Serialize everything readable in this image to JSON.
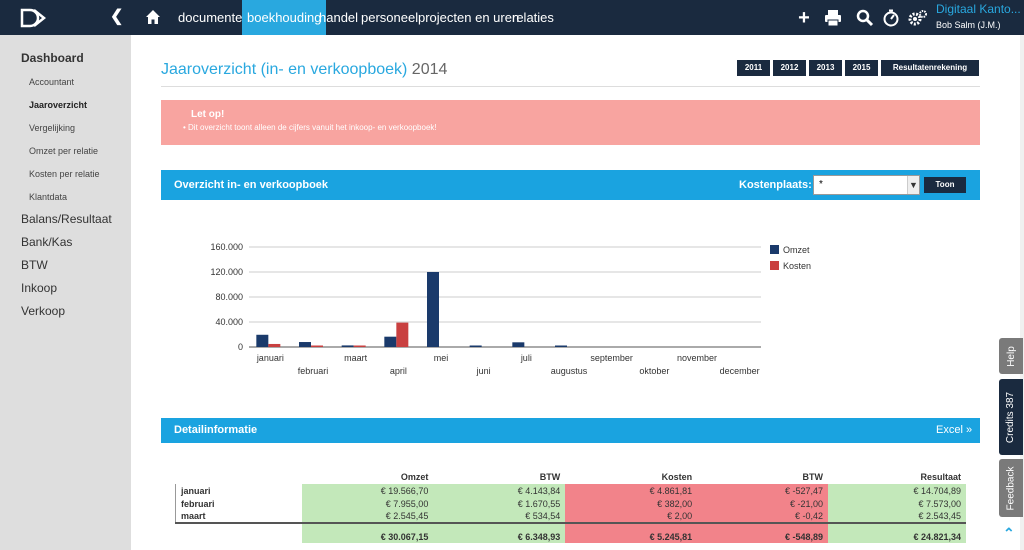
{
  "topbar": {
    "nav": [
      "documenten",
      "boekhouding",
      "handel",
      "personeel",
      "projecten en uren",
      "relaties"
    ],
    "active_nav": "boekhouding",
    "company": "Digitaal Kanto...",
    "user": "Bob Salm (J.M.)",
    "icons": [
      "logo-icon",
      "back-chevron-icon",
      "home-icon",
      "plus-icon",
      "print-icon",
      "search-icon",
      "timer-icon",
      "settings-icon"
    ]
  },
  "sidebar": {
    "dashboard": "Dashboard",
    "subitems": [
      "Accountant",
      "Jaaroverzicht",
      "Vergelijking",
      "Omzet per relatie",
      "Kosten per relatie",
      "Klantdata"
    ],
    "active_subitem": "Jaaroverzicht",
    "sections": [
      "Balans/Resultaat",
      "Bank/Kas",
      "BTW",
      "Inkoop",
      "Verkoop"
    ]
  },
  "page": {
    "title": "Jaaroverzicht (in- en verkoopboek)",
    "year": "2014",
    "year_buttons": [
      "2011",
      "2012",
      "2013",
      "2015",
      "Resultatenrekening"
    ]
  },
  "alert": {
    "title": "Let op!",
    "message": "Dit overzicht toont alleen de cijfers vanuit het inkoop- en verkoopboek!"
  },
  "overview": {
    "title": "Overzicht in- en verkoopboek",
    "kostenplaats_label": "Kostenplaats:",
    "kostenplaats_value": "*",
    "toon_button": "Toon"
  },
  "chart_data": {
    "type": "bar",
    "categories": [
      "januari",
      "februari",
      "maart",
      "april",
      "mei",
      "juni",
      "juli",
      "augustus",
      "september",
      "oktober",
      "november",
      "december"
    ],
    "series": [
      {
        "name": "Omzet",
        "color": "#1a3a6b",
        "values": [
          19566.7,
          7955.0,
          2545.45,
          16500,
          120000,
          1000,
          7500,
          2000,
          0,
          0,
          0,
          0
        ]
      },
      {
        "name": "Kosten",
        "color": "#c94040",
        "values": [
          4861.81,
          382.0,
          2.0,
          39000,
          0,
          0,
          0,
          0,
          0,
          0,
          0,
          0
        ]
      }
    ],
    "yticks": [
      "0",
      "40.000",
      "80.000",
      "120.000",
      "160.000"
    ],
    "ylim": [
      0,
      160000
    ],
    "legend_position": "right",
    "grid": true
  },
  "detail": {
    "title": "Detailinformatie",
    "excel_link": "Excel »",
    "columns": [
      "Omzet",
      "BTW",
      "Kosten",
      "BTW",
      "Resultaat"
    ],
    "rows": [
      {
        "month": "januari",
        "omzet": "€ 19.566,70",
        "btw1": "€ 4.143,84",
        "kosten": "€ 4.861,81",
        "btw2": "€ -527,47",
        "resultaat": "€ 14.704,89"
      },
      {
        "month": "februari",
        "omzet": "€ 7.955,00",
        "btw1": "€ 1.670,55",
        "kosten": "€ 382,00",
        "btw2": "€ -21,00",
        "resultaat": "€ 7.573,00"
      },
      {
        "month": "maart",
        "omzet": "€ 2.545,45",
        "btw1": "€ 534,54",
        "kosten": "€ 2,00",
        "btw2": "€ -0,42",
        "resultaat": "€ 2.543,45"
      }
    ],
    "totals": {
      "omzet": "€ 30.067,15",
      "btw1": "€ 6.348,93",
      "kosten": "€ 5.245,81",
      "btw2": "€ -548,89",
      "resultaat": "€ 24.821,34"
    }
  },
  "right_tabs": [
    "Help",
    "Credits 387",
    "Feedback"
  ],
  "colors": {
    "navy": "#1a2a3f",
    "accent": "#29a8df",
    "alert": "#f8a4a0",
    "green": "#c3e8ba",
    "red": "#f2838a"
  }
}
